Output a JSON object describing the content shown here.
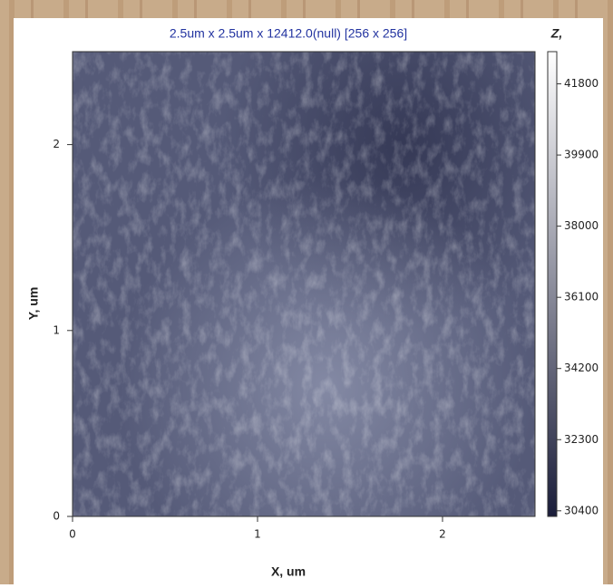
{
  "chart_data": {
    "type": "image",
    "title": "2.5um x 2.5um x 12412.0(null) [256 x 256]",
    "xlabel": "X, um",
    "ylabel": "Y, um",
    "xlim": [
      0,
      2.5
    ],
    "ylim": [
      0,
      2.5
    ],
    "xticks": [
      0,
      1,
      2
    ],
    "yticks": [
      0,
      1,
      2
    ],
    "colorbar": {
      "label": "Z,",
      "lim": [
        30250,
        42660
      ],
      "ticks": [
        30400,
        32300,
        34200,
        36100,
        38000,
        39900,
        41800
      ],
      "colors": [
        "#1a1d3a",
        "#ffffff"
      ]
    }
  }
}
